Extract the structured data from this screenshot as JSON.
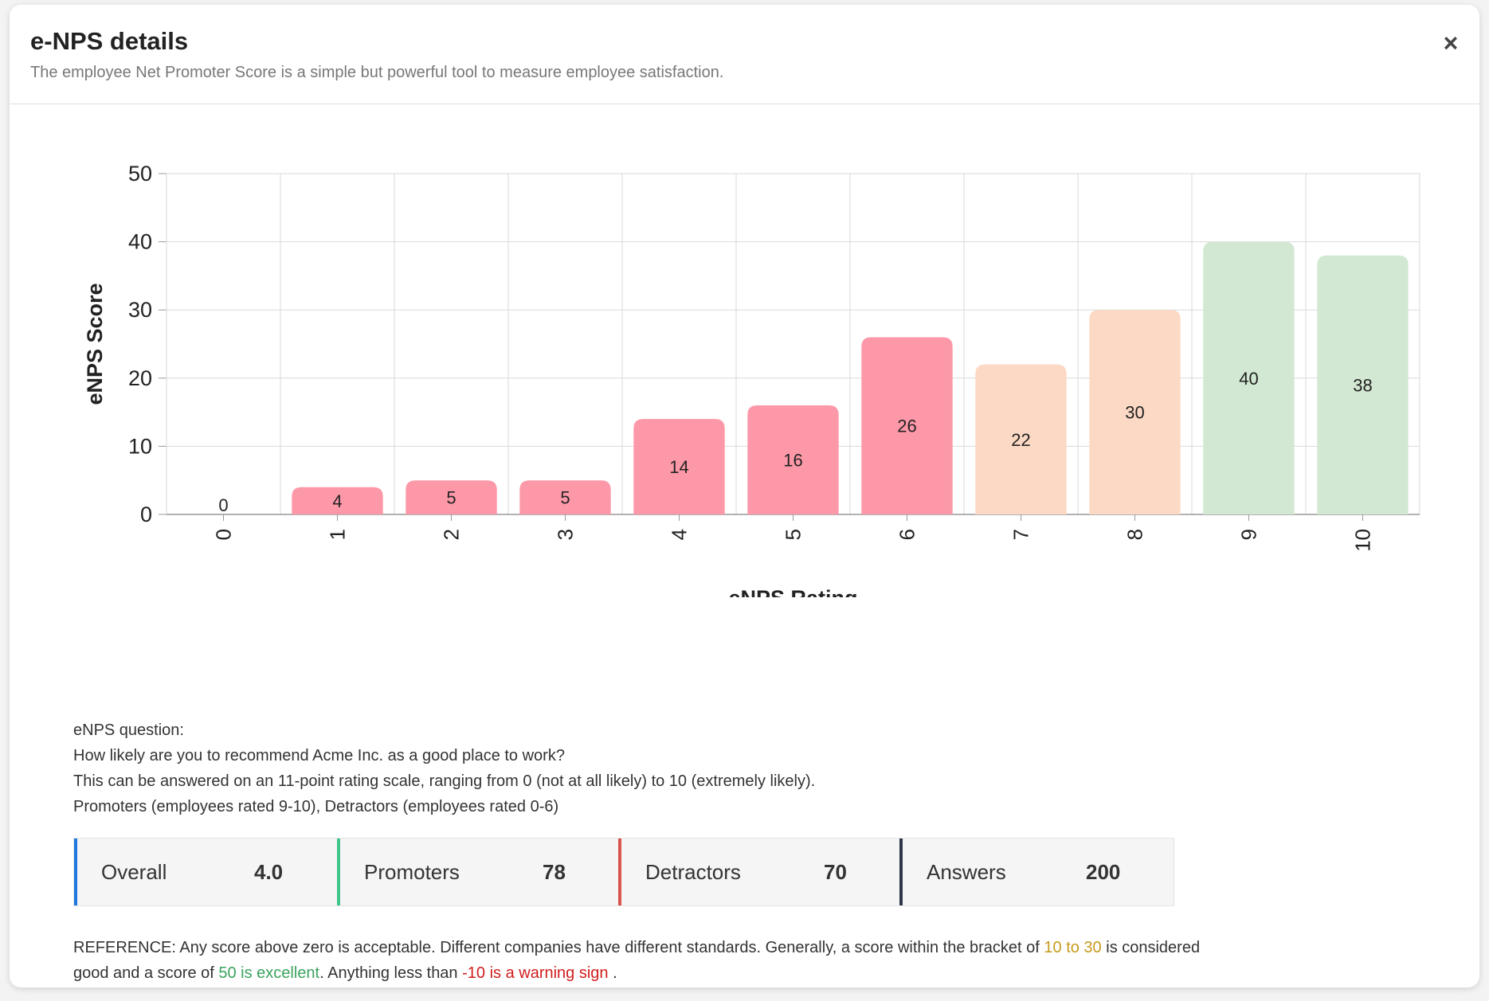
{
  "modal": {
    "title": "e-NPS details",
    "subtitle": "The employee Net Promoter Score is a simple but powerful tool to measure employee satisfaction.",
    "close_icon": "×"
  },
  "chart_data": {
    "type": "bar",
    "xlabel": "eNPS Rating",
    "ylabel": "eNPS Score",
    "categories": [
      "0",
      "1",
      "2",
      "3",
      "4",
      "5",
      "6",
      "7",
      "8",
      "9",
      "10"
    ],
    "values": [
      0,
      4,
      5,
      5,
      14,
      16,
      26,
      22,
      30,
      40,
      38
    ],
    "value_labels": [
      "0",
      "4",
      "5",
      "5",
      "14",
      "16",
      "26",
      "22",
      "30",
      "40",
      "38"
    ],
    "yticks": [
      0,
      10,
      20,
      30,
      40,
      50
    ],
    "ylim": [
      0,
      50
    ],
    "grid": true,
    "bar_colors": [
      "#fd98a9",
      "#fd98a9",
      "#fd98a9",
      "#fd98a9",
      "#fd98a9",
      "#fd98a9",
      "#fd98a9",
      "#fcd9c4",
      "#fcd9c4",
      "#d3e8d2",
      "#d3e8d2"
    ]
  },
  "question": {
    "heading": "eNPS question:",
    "text": "How likely are you to recommend Acme Inc. as a good place to work?",
    "scale": "This can be answered on an 11-point rating scale, ranging from 0 (not at all likely) to 10 (extremely likely).",
    "groups": "Promoters (employees rated 9-10), Detractors (employees rated 0-6)"
  },
  "stats": [
    {
      "label": "Overall",
      "value": "4.0",
      "color": "#1f77e0"
    },
    {
      "label": "Promoters",
      "value": "78",
      "color": "#3fc48a"
    },
    {
      "label": "Detractors",
      "value": "70",
      "color": "#d9534f"
    },
    {
      "label": "Answers",
      "value": "200",
      "color": "#2d3748"
    }
  ],
  "reference": {
    "prefix": "REFERENCE: Any score above zero is acceptable. Different companies have different standards. Generally, a score within the bracket of ",
    "good_range": "10 to 30",
    "mid1": " is considered good and a score of ",
    "excellent": "50 is excellent",
    "mid2": ". Anything less than ",
    "warning": "-10 is a warning sign",
    "suffix": " ."
  }
}
